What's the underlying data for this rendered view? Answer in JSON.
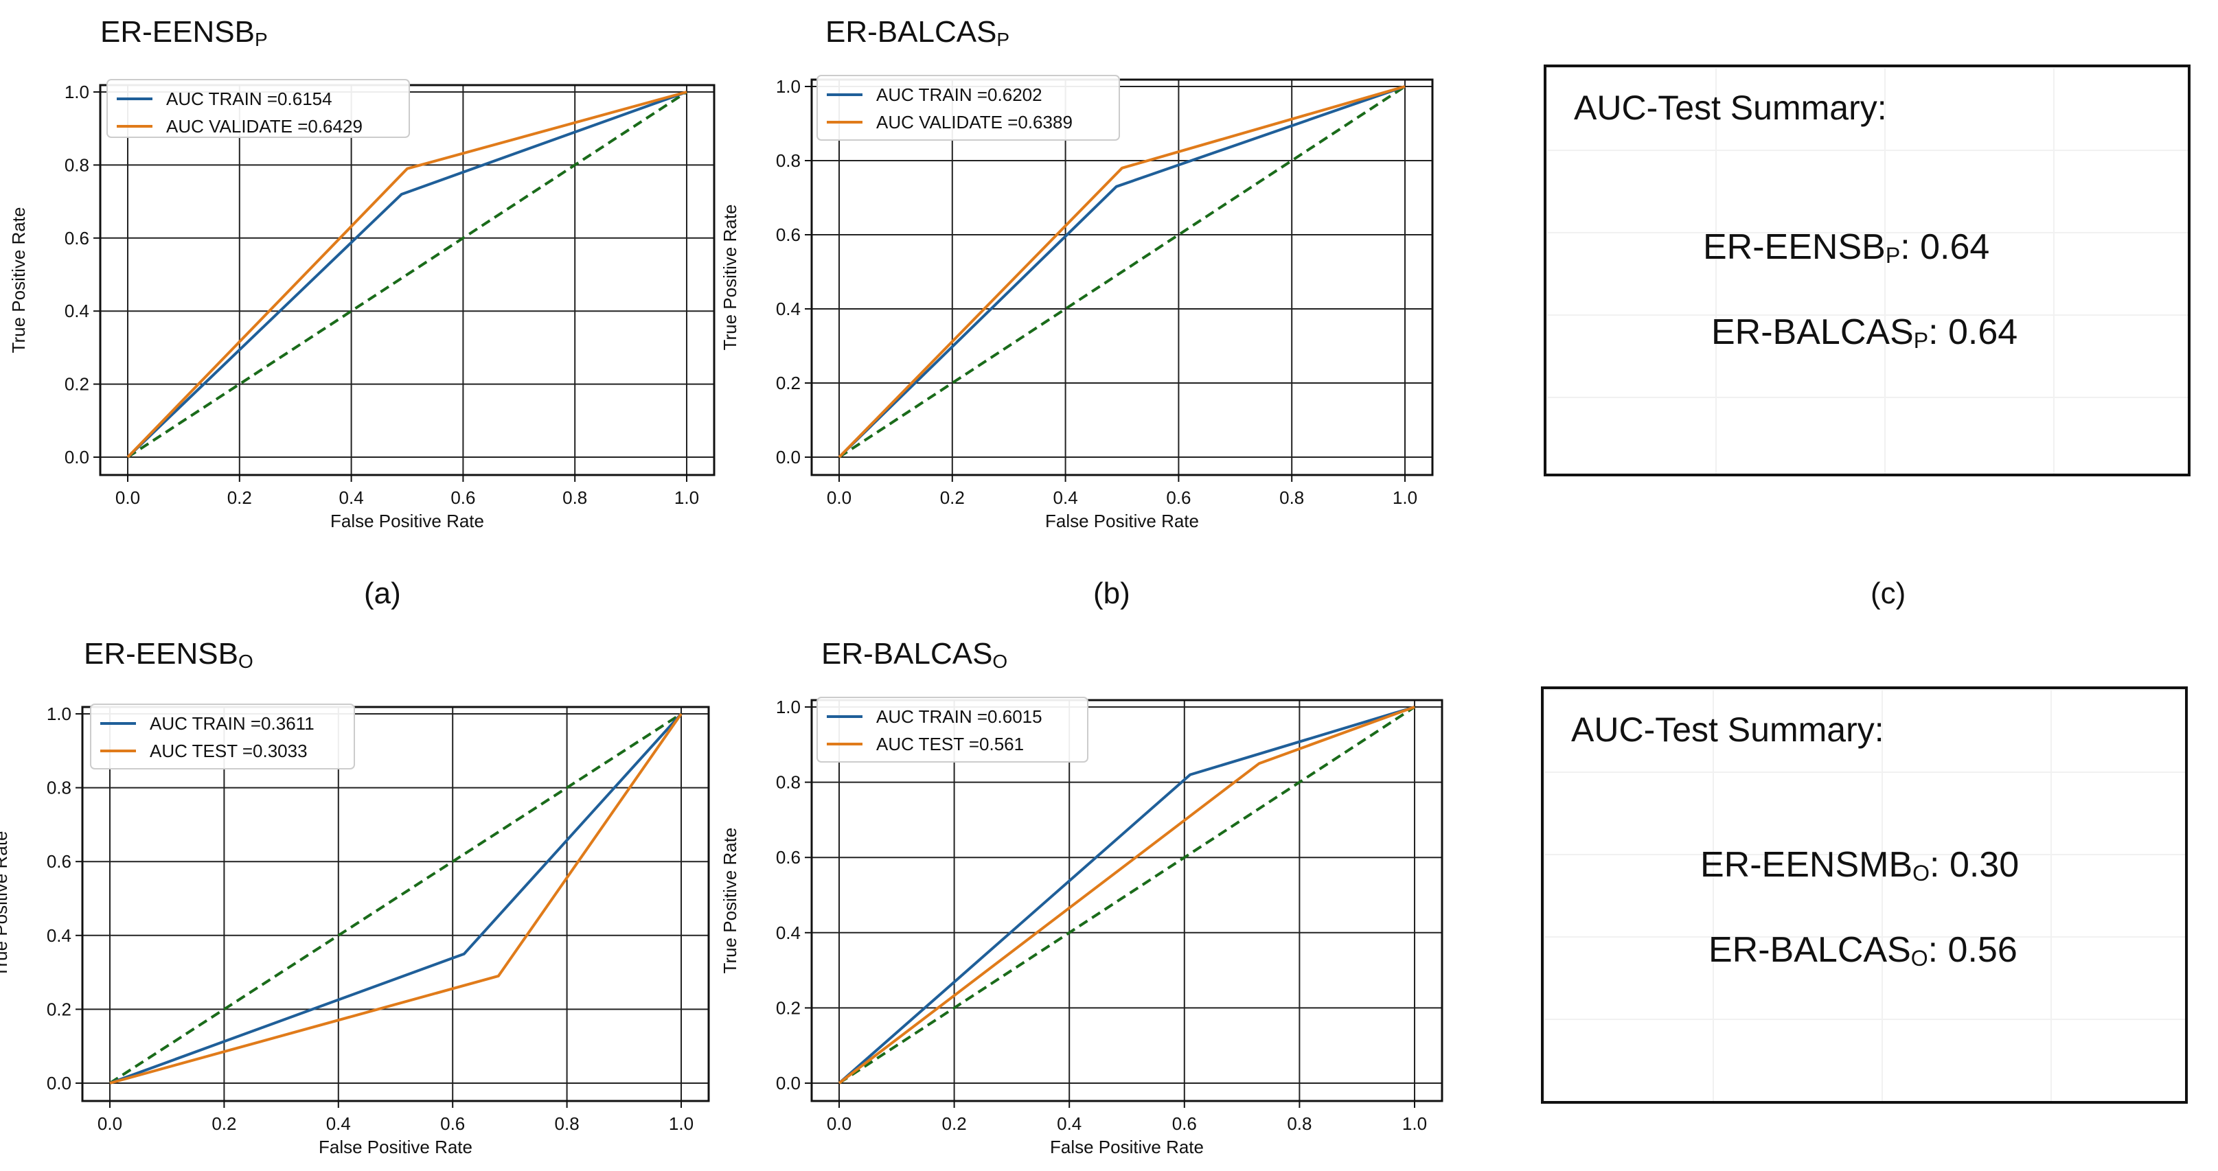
{
  "colors": {
    "train": "#1f5f99",
    "val": "#e07b1a",
    "diag": "#1a6b1a"
  },
  "chart_data": [
    {
      "type": "line",
      "title_main": "ER-EENSB",
      "title_sub": "P",
      "caption": "(a)",
      "xlabel": "False Positive Rate",
      "ylabel": "True Positive Rate",
      "xlim": [
        0,
        1
      ],
      "ylim": [
        0,
        1
      ],
      "xticks": [
        "0.0",
        "0.2",
        "0.4",
        "0.6",
        "0.8",
        "1.0"
      ],
      "yticks": [
        "0.0",
        "0.2",
        "0.4",
        "0.6",
        "0.8",
        "1.0"
      ],
      "grid": true,
      "legend": "top-left",
      "series": [
        {
          "name": "AUC TRAIN =0.6154",
          "x": [
            0,
            0.49,
            1
          ],
          "y": [
            0,
            0.72,
            1
          ]
        },
        {
          "name": "AUC VALIDATE =0.6429",
          "x": [
            0,
            0.5,
            1
          ],
          "y": [
            0,
            0.79,
            1
          ]
        },
        {
          "x": [
            0,
            1
          ],
          "y": [
            0,
            1
          ]
        }
      ]
    },
    {
      "type": "line",
      "title_main": "ER-BALCAS",
      "title_sub": "P",
      "caption": "(b)",
      "xlabel": "False Positive Rate",
      "ylabel": "True Positive Rate",
      "xlim": [
        0,
        1
      ],
      "ylim": [
        0,
        1
      ],
      "xticks": [
        "0.0",
        "0.2",
        "0.4",
        "0.6",
        "0.8",
        "1.0"
      ],
      "yticks": [
        "0.0",
        "0.2",
        "0.4",
        "0.6",
        "0.8",
        "1.0"
      ],
      "grid": true,
      "legend": "top-left",
      "series": [
        {
          "name": "AUC TRAIN =0.6202",
          "x": [
            0,
            0.49,
            1
          ],
          "y": [
            0,
            0.73,
            1
          ]
        },
        {
          "name": "AUC VALIDATE =0.6389",
          "x": [
            0,
            0.5,
            1
          ],
          "y": [
            0,
            0.78,
            1
          ]
        },
        {
          "x": [
            0,
            1
          ],
          "y": [
            0,
            1
          ]
        }
      ]
    },
    {
      "type": "line",
      "title_main": "ER-EENSB",
      "title_sub": "O",
      "caption": "",
      "xlabel": "False Positive Rate",
      "ylabel": "True Positive Rate",
      "xlim": [
        0,
        1
      ],
      "ylim": [
        0,
        1
      ],
      "xticks": [
        "0.0",
        "0.2",
        "0.4",
        "0.6",
        "0.8",
        "1.0"
      ],
      "yticks": [
        "0.0",
        "0.2",
        "0.4",
        "0.6",
        "0.8",
        "1.0"
      ],
      "grid": true,
      "legend": "top-left",
      "series": [
        {
          "name": "AUC TRAIN =0.3611",
          "x": [
            0,
            0.62,
            1
          ],
          "y": [
            0,
            0.35,
            1
          ]
        },
        {
          "name": "AUC TEST =0.3033",
          "x": [
            0,
            0.68,
            1
          ],
          "y": [
            0,
            0.29,
            1
          ]
        },
        {
          "x": [
            0,
            1
          ],
          "y": [
            0,
            1
          ]
        }
      ]
    },
    {
      "type": "line",
      "title_main": "ER-BALCAS",
      "title_sub": "O",
      "caption": "",
      "xlabel": "False Positive Rate",
      "ylabel": "True Positive Rate",
      "xlim": [
        0,
        1
      ],
      "ylim": [
        0,
        1
      ],
      "xticks": [
        "0.0",
        "0.2",
        "0.4",
        "0.6",
        "0.8",
        "1.0"
      ],
      "yticks": [
        "0.0",
        "0.2",
        "0.4",
        "0.6",
        "0.8",
        "1.0"
      ],
      "grid": true,
      "legend": "top-left",
      "series": [
        {
          "name": "AUC TRAIN =0.6015",
          "x": [
            0,
            0.61,
            1
          ],
          "y": [
            0,
            0.82,
            1
          ]
        },
        {
          "name": "AUC TEST =0.561",
          "x": [
            0,
            0.73,
            1
          ],
          "y": [
            0,
            0.85,
            1
          ]
        },
        {
          "x": [
            0,
            1
          ],
          "y": [
            0,
            1
          ]
        }
      ]
    }
  ],
  "summaries": [
    {
      "title": "AUC-Test Summary:",
      "caption": "(c)",
      "lines": [
        {
          "main": "ER-EENSB",
          "sub": "P",
          "value": ": 0.64"
        },
        {
          "main": "ER-BALCAS",
          "sub": "P",
          "value": ": 0.64"
        }
      ]
    },
    {
      "title": "AUC-Test Summary:",
      "caption": "",
      "lines": [
        {
          "main": "ER-EENSMB",
          "sub": "O",
          "value": ": 0.30"
        },
        {
          "main": "ER-BALCAS",
          "sub": "O",
          "value": ": 0.56"
        }
      ]
    }
  ]
}
